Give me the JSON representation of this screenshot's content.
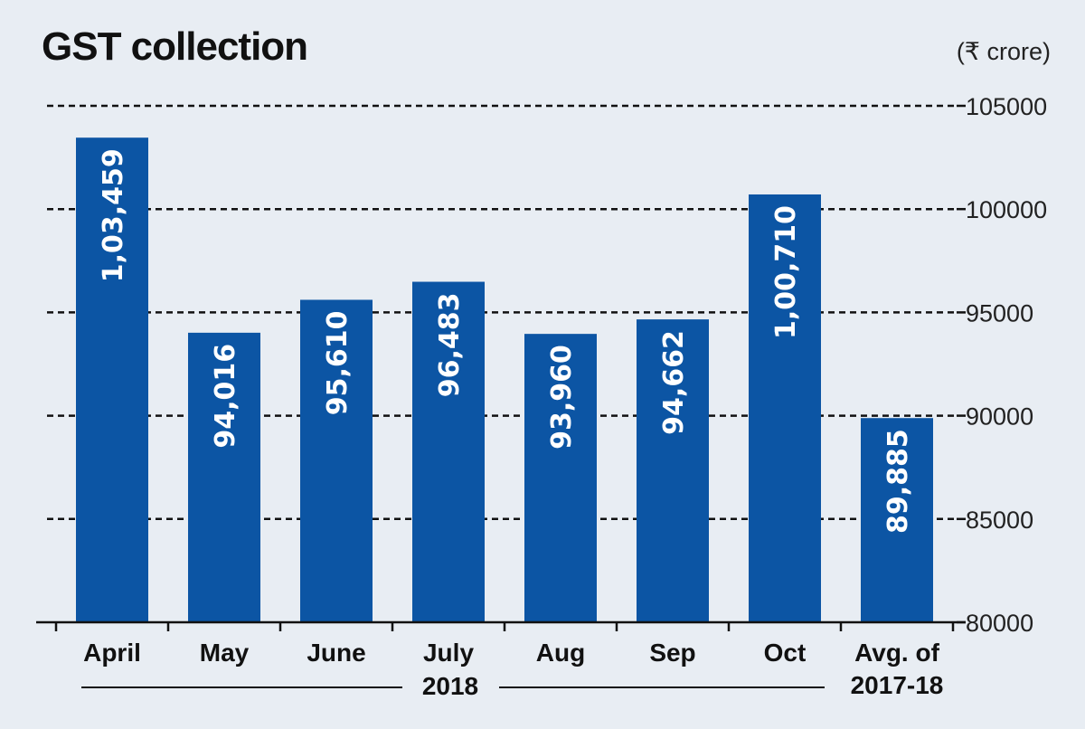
{
  "chart_data": {
    "type": "bar",
    "title": "GST collection",
    "unit": "(₹ crore)",
    "categories": [
      "April",
      "May",
      "June",
      "July",
      "Aug",
      "Sep",
      "Oct",
      "Avg. of 2017-18"
    ],
    "values": [
      103459,
      94016,
      95610,
      96483,
      93960,
      94662,
      100710,
      89885
    ],
    "value_labels": [
      "1,03,459",
      "94,016",
      "95,610",
      "96,483",
      "93,960",
      "94,662",
      "1,00,710",
      "89,885"
    ],
    "ylim": [
      80000,
      105000
    ],
    "yticks": [
      80000,
      85000,
      90000,
      95000,
      100000,
      105000
    ],
    "ytick_labels": [
      "80000",
      "85000",
      "90000",
      "95000",
      "100000",
      "105000"
    ],
    "axis_position": "right",
    "grid": "dashed",
    "group_label": "2018",
    "bar_color": "#0c55a4"
  }
}
